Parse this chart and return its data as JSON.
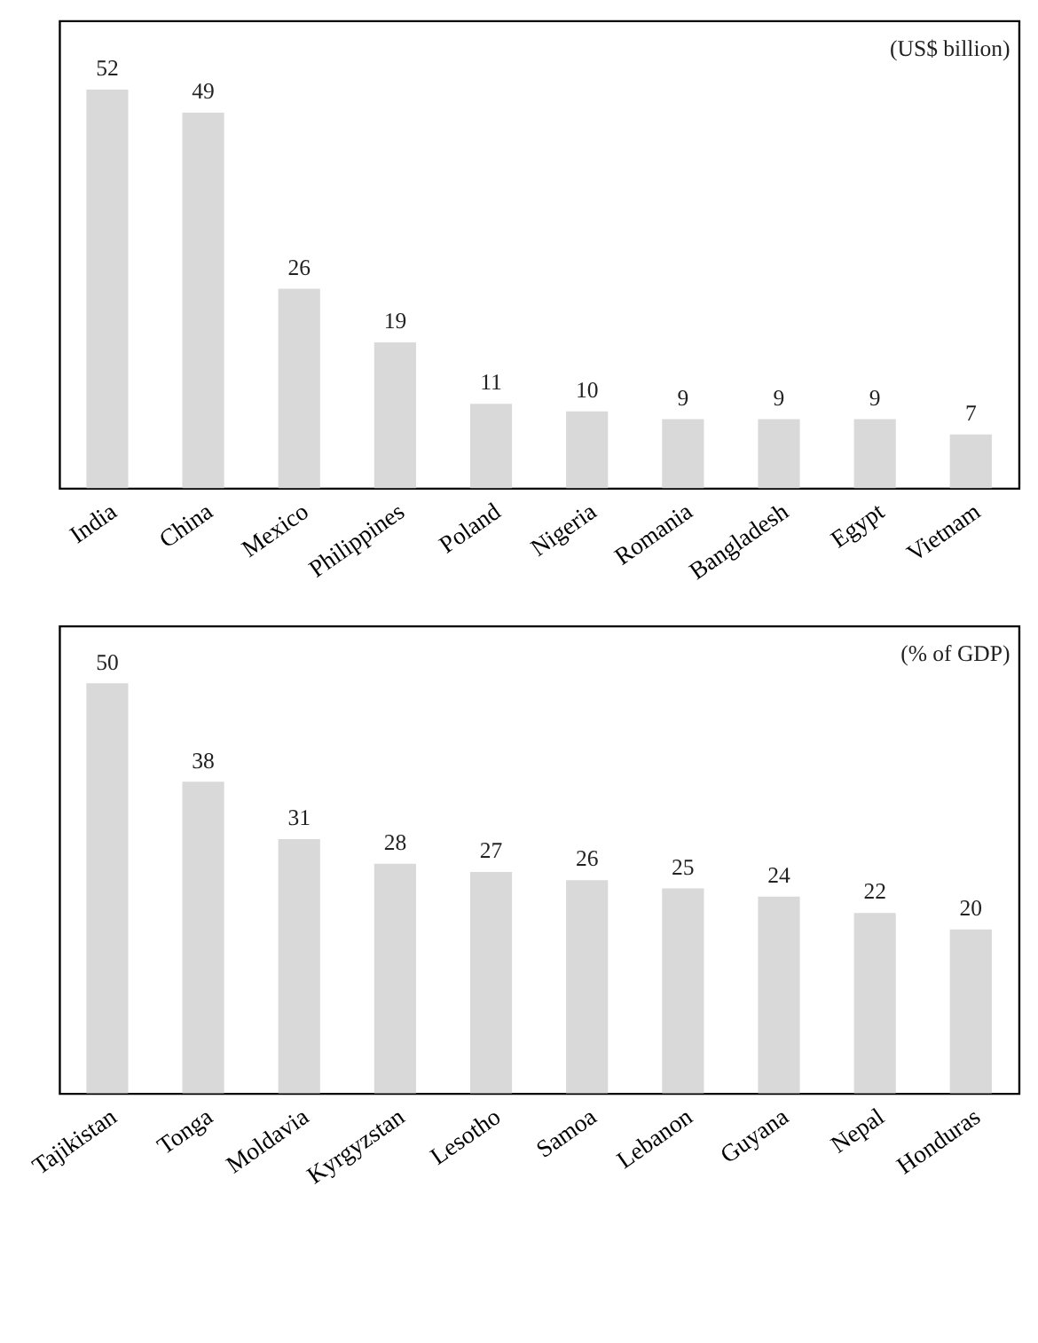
{
  "chart_data": [
    {
      "type": "bar",
      "categories": [
        "India",
        "China",
        "Mexico",
        "Philippines",
        "Poland",
        "Nigeria",
        "Romania",
        "Bangladesh",
        "Egypt",
        "Vietnam"
      ],
      "values": [
        52,
        49,
        26,
        19,
        11,
        10,
        9,
        9,
        9,
        7
      ],
      "color": "#d9d9d9",
      "data_labels": true,
      "ylim": [
        0,
        61
      ],
      "annotations": [
        "(US$ billion)"
      ],
      "tick_labels": "x",
      "grid": false
    },
    {
      "type": "bar",
      "categories": [
        "Tajikistan",
        "Tonga",
        "Moldavia",
        "Kyrgyzstan",
        "Lesotho",
        "Samoa",
        "Lebanon",
        "Guyana",
        "Nepal",
        "Honduras"
      ],
      "values": [
        50,
        38,
        31,
        28,
        27,
        26,
        25,
        24,
        22,
        20
      ],
      "color": "#d9d9d9",
      "data_labels": true,
      "ylim": [
        0,
        57
      ],
      "annotations": [
        "(% of GDP)"
      ],
      "tick_labels": "x",
      "grid": false
    }
  ]
}
